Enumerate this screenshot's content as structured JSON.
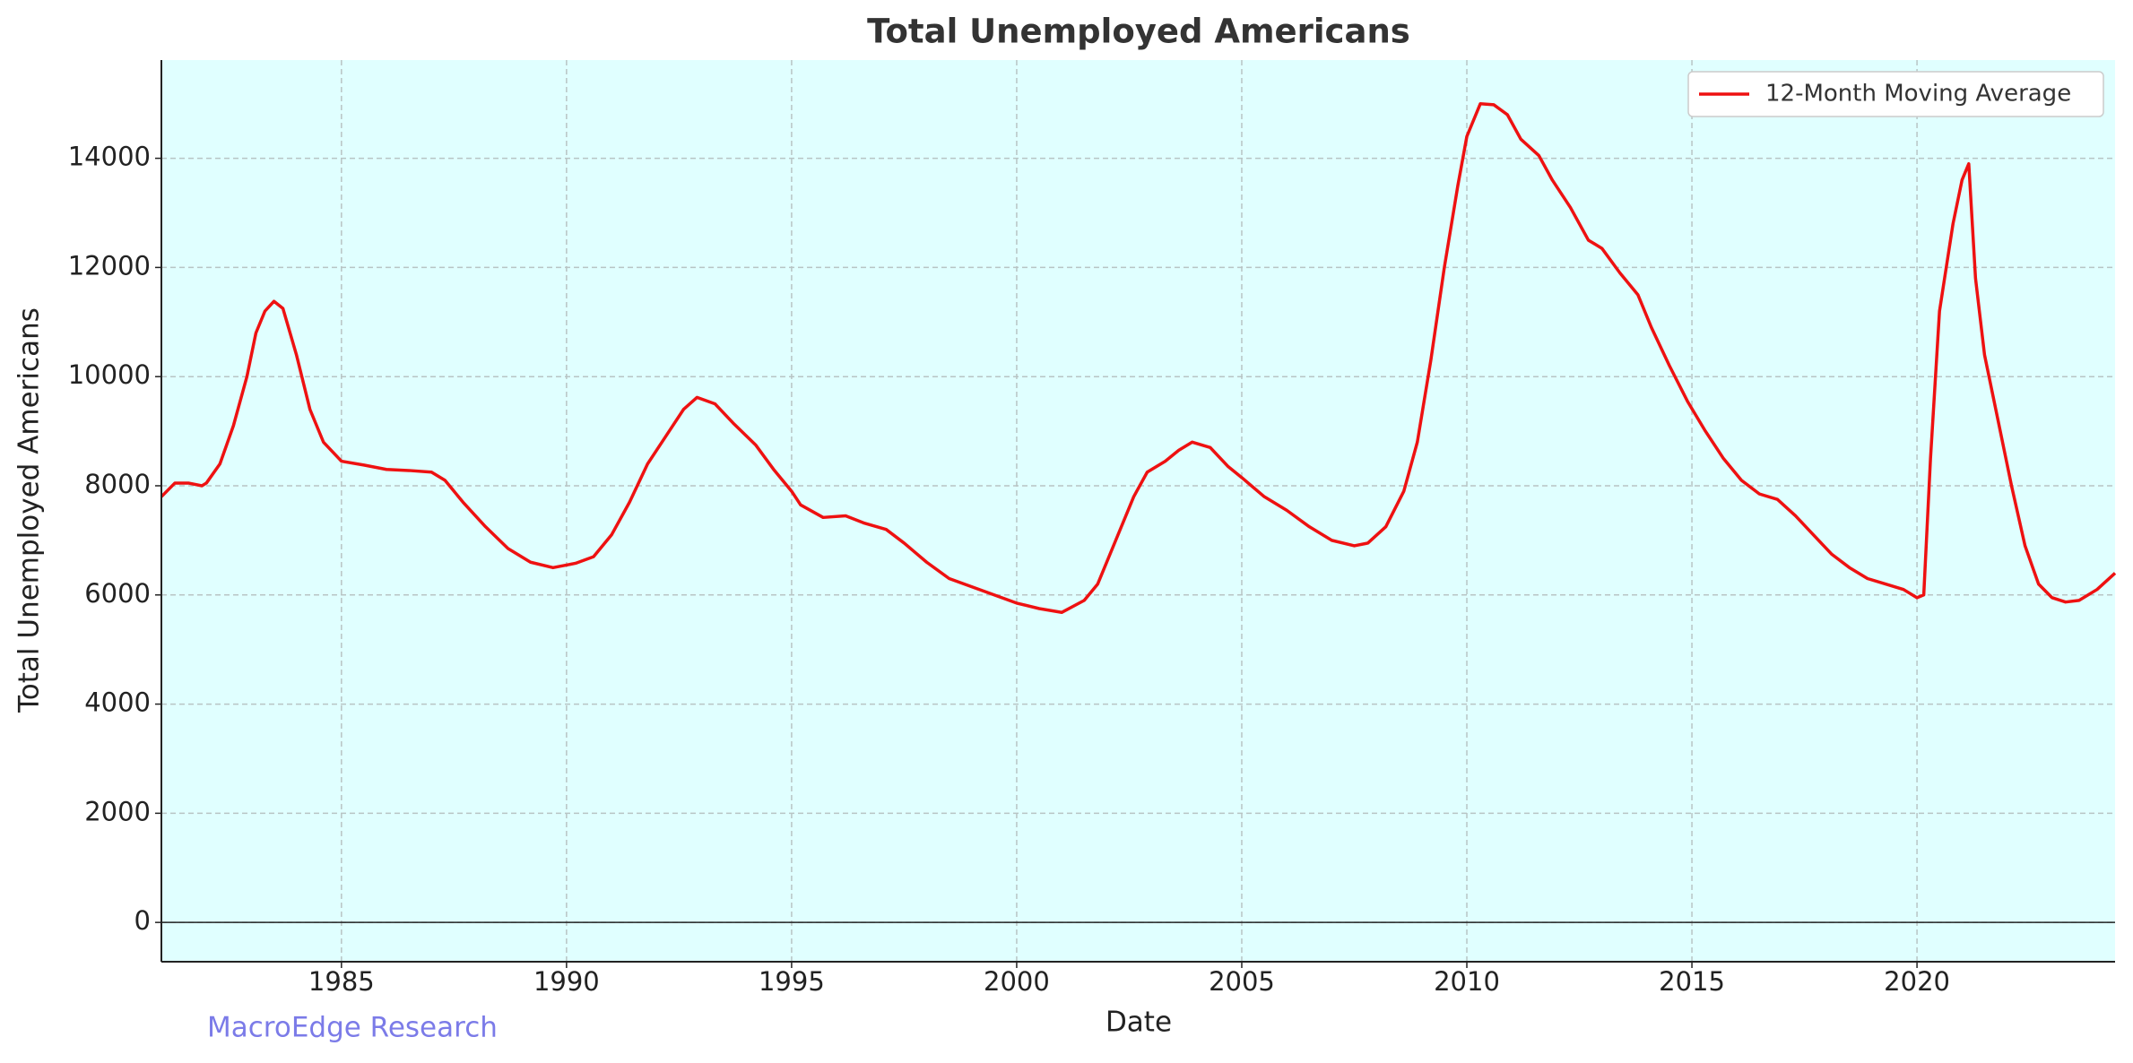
{
  "chart_data": {
    "type": "line",
    "title": "Total Unemployed Americans",
    "x_label": "Date",
    "y_label": "Total Unemployed Americans",
    "watermark": "MacroEdge Research",
    "background": "#e0ffff",
    "grid": true,
    "legend": "upper right",
    "hline": 0,
    "xlim": [
      1981.0,
      2024.4
    ],
    "xticks": [
      1985,
      1990,
      1995,
      2000,
      2005,
      2010,
      2015,
      2020
    ],
    "ylim": [
      -720,
      15800
    ],
    "yticks": [
      0,
      2000,
      4000,
      6000,
      8000,
      10000,
      12000,
      14000
    ],
    "x": [
      1981.0,
      1981.3,
      1981.6,
      1981.9,
      1982.0,
      1982.3,
      1982.6,
      1982.9,
      1983.1,
      1983.3,
      1983.5,
      1983.7,
      1984.0,
      1984.3,
      1984.6,
      1985.0,
      1985.5,
      1986.0,
      1986.5,
      1987.0,
      1987.3,
      1987.7,
      1988.2,
      1988.7,
      1989.2,
      1989.7,
      1990.2,
      1990.6,
      1991.0,
      1991.4,
      1991.8,
      1992.2,
      1992.6,
      1992.9,
      1993.3,
      1993.7,
      1994.2,
      1994.6,
      1995.0,
      1995.2,
      1995.7,
      1996.2,
      1996.6,
      1997.1,
      1997.5,
      1998.0,
      1998.5,
      1999.0,
      1999.5,
      2000.0,
      2000.5,
      2001.0,
      2001.5,
      2001.8,
      2002.2,
      2002.6,
      2002.9,
      2003.3,
      2003.6,
      2003.9,
      2004.3,
      2004.7,
      2005.0,
      2005.5,
      2006.0,
      2006.5,
      2007.0,
      2007.5,
      2007.8,
      2008.2,
      2008.6,
      2008.9,
      2009.2,
      2009.5,
      2009.8,
      2010.0,
      2010.3,
      2010.6,
      2010.9,
      2011.2,
      2011.6,
      2011.9,
      2012.3,
      2012.7,
      2013.0,
      2013.4,
      2013.8,
      2014.1,
      2014.5,
      2014.9,
      2015.3,
      2015.7,
      2016.1,
      2016.5,
      2016.9,
      2017.3,
      2017.7,
      2018.1,
      2018.5,
      2018.9,
      2019.3,
      2019.7,
      2020.0,
      2020.15,
      2020.3,
      2020.5,
      2020.8,
      2021.0,
      2021.15,
      2021.3,
      2021.5,
      2021.8,
      2022.1,
      2022.4,
      2022.7,
      2023.0,
      2023.3,
      2023.6,
      2024.0,
      2024.4
    ],
    "series": [
      {
        "name": "12-Month Moving Average",
        "color": "#ee1111",
        "values": [
          7800,
          8050,
          8050,
          8000,
          8050,
          8400,
          9100,
          10000,
          10800,
          11200,
          11380,
          11250,
          10400,
          9400,
          8800,
          8450,
          8380,
          8300,
          8280,
          8250,
          8100,
          7700,
          7250,
          6850,
          6600,
          6500,
          6580,
          6700,
          7100,
          7700,
          8400,
          8900,
          9400,
          9620,
          9500,
          9150,
          8750,
          8300,
          7900,
          7650,
          7420,
          7450,
          7320,
          7200,
          6950,
          6600,
          6300,
          6150,
          6000,
          5850,
          5750,
          5680,
          5900,
          6200,
          7000,
          7800,
          8250,
          8450,
          8650,
          8800,
          8700,
          8350,
          8150,
          7800,
          7550,
          7250,
          7000,
          6900,
          6950,
          7250,
          7900,
          8800,
          10300,
          12000,
          13500,
          14400,
          15000,
          14980,
          14800,
          14350,
          14050,
          13600,
          13100,
          12500,
          12350,
          11900,
          11500,
          10900,
          10200,
          9550,
          9000,
          8500,
          8100,
          7850,
          7750,
          7450,
          7100,
          6750,
          6500,
          6300,
          6200,
          6100,
          5950,
          6000,
          8500,
          11200,
          12800,
          13600,
          13900,
          11800,
          10400,
          9200,
          8000,
          6900,
          6200,
          5950,
          5870,
          5900,
          6100,
          6400
        ]
      }
    ]
  }
}
